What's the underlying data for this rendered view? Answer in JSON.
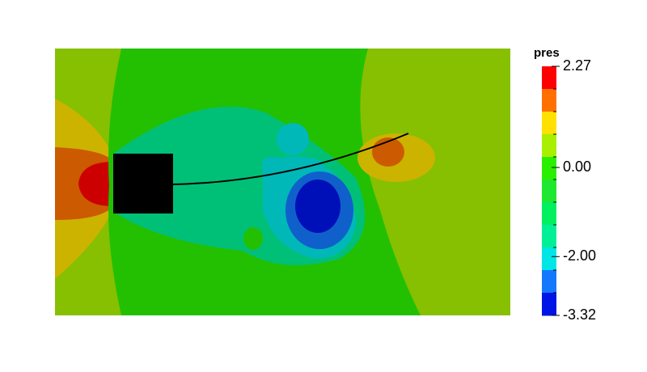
{
  "chart_data": {
    "type": "contour",
    "colorbar_title": "pres",
    "zlim": [
      -3.32,
      2.27
    ],
    "zticks": [
      2.27,
      {
        "value": 0,
        "label": "0.00"
      },
      {
        "value": -2,
        "label": "-2.00"
      },
      -3.32
    ],
    "colors": [
      "#ff0000",
      "#ff7000",
      "#ffe000",
      "#a8f000",
      "#2af000",
      "#20e830",
      "#00f060",
      "#00f096",
      "#00e6e6",
      "#1478ff",
      "#0014e6"
    ]
  }
}
